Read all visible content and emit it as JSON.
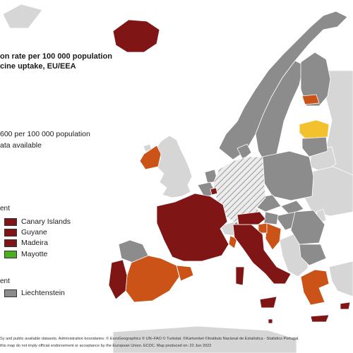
{
  "title": {
    "line1": "on rate per 100 000 population",
    "line2": "cine uptake, EU/EEA"
  },
  "legend": {
    "threshold_label": "600 per 100 000 population",
    "no_data_label": "ata available"
  },
  "outermost_regions": {
    "heading": "ent",
    "items": [
      {
        "label": "Canary Islands",
        "color": "#7f1515"
      },
      {
        "label": "Guyane",
        "color": "#7f1515"
      },
      {
        "label": "Madeira",
        "color": "#7f1515"
      },
      {
        "label": "Mayotte",
        "color": "#4caf1f"
      }
    ]
  },
  "small_countries": {
    "heading": "ent",
    "items": [
      {
        "label": "Liechtenstein",
        "color": "#8c8c8c"
      }
    ]
  },
  "colors": {
    "dark_red": "#7f1515",
    "orange": "#cc5318",
    "yellow": "#f4c12e",
    "gray": "#8c8c8c",
    "non_eu": "#d6d6d6",
    "sea": "#ffffff"
  },
  "footer": {
    "line1": "Sy and public available datasets. Administrative boundaries: © EuroGeographics © UN–FAO © Turkstat. ©Kartverket ©Instituto Nacional de Estatística - Statistics Portugal.",
    "line2": "this map do not imply official endorsement or acceptance by the European Union. ECDC. Map produced on: 22 Jun 2022"
  }
}
